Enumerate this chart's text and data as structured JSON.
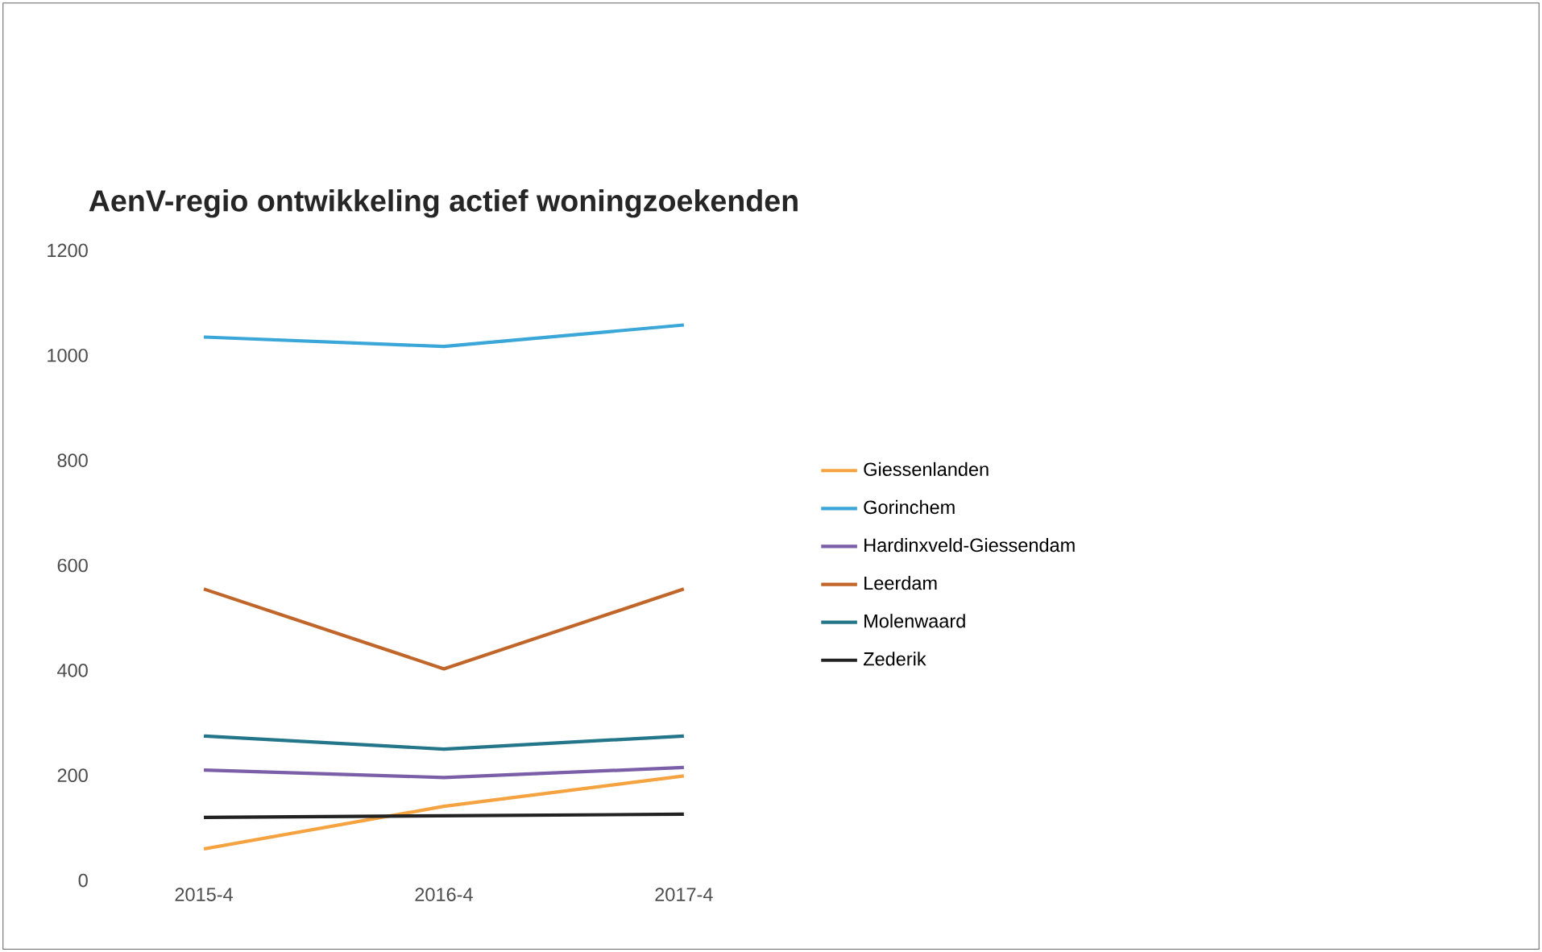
{
  "chart_data": {
    "type": "line",
    "title": "AenV-regio ontwikkeling actief woningzoekenden",
    "categories": [
      "2015-4",
      "2016-4",
      "2017-4"
    ],
    "series": [
      {
        "name": "Giessenlanden",
        "color": "#f5a340",
        "values": [
          60,
          141,
          199
        ]
      },
      {
        "name": "Gorinchem",
        "color": "#3aa7d8",
        "values": [
          1035,
          1017,
          1058
        ]
      },
      {
        "name": "Hardinxveld-Giessendam",
        "color": "#7a5ea8",
        "values": [
          210,
          196,
          215
        ]
      },
      {
        "name": "Leerdam",
        "color": "#c0662a",
        "values": [
          555,
          403,
          555
        ]
      },
      {
        "name": "Molenwaard",
        "color": "#23758a",
        "values": [
          275,
          250,
          275
        ]
      },
      {
        "name": "Zederik",
        "color": "#222222",
        "values": [
          120,
          123,
          126
        ]
      }
    ],
    "ylim": [
      0,
      1200
    ],
    "yticks": [
      0,
      200,
      400,
      600,
      800,
      1000,
      1200
    ],
    "legend": "right",
    "grid": false,
    "marker": "none",
    "line_style": "solid"
  }
}
